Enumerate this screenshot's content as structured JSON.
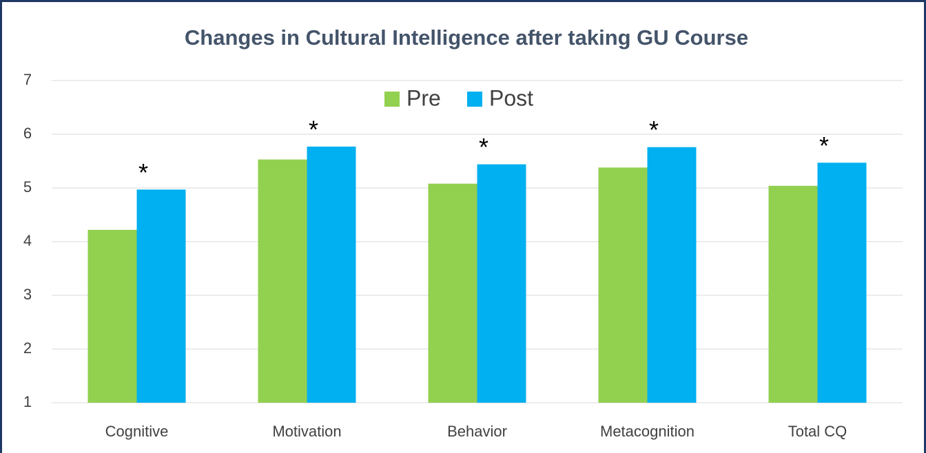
{
  "chart_data": {
    "type": "bar",
    "title": "Changes in Cultural Intelligence after taking GU Course",
    "categories": [
      "Cognitive",
      "Motivation",
      "Behavior",
      "Metacognition",
      "Total CQ"
    ],
    "series": [
      {
        "name": "Pre",
        "color": "#92d050",
        "values": [
          4.22,
          5.53,
          5.08,
          5.38,
          5.04
        ]
      },
      {
        "name": "Post",
        "color": "#00b0f0",
        "values": [
          4.97,
          5.77,
          5.44,
          5.76,
          5.47
        ]
      }
    ],
    "annotations": [
      "*",
      "*",
      "*",
      "*",
      "*"
    ],
    "ylim": [
      1,
      7
    ],
    "yticks": [
      1,
      2,
      3,
      4,
      5,
      6,
      7
    ],
    "grid": true,
    "legend": "top"
  }
}
